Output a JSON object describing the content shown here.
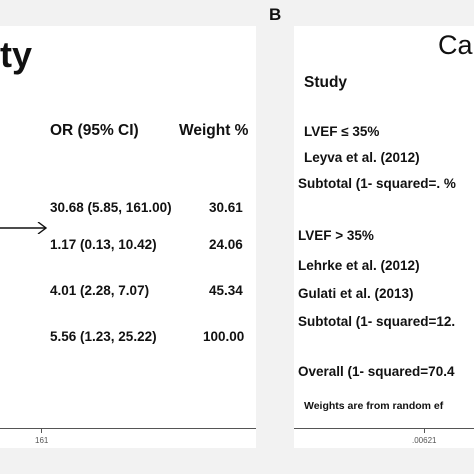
{
  "panel_a": {
    "title": "ty",
    "columns": {
      "or": "OR (95% CI)",
      "weight": "Weight %"
    },
    "tick": "161"
  },
  "panel_b": {
    "letter": "B",
    "title": "Ca",
    "study_header": "Study",
    "groups": {
      "g1": "LVEF ≤ 35%",
      "s1": "Leyva et al. (2012)",
      "sub1": "Subtotal (1- squared=. %",
      "g2": "LVEF > 35%",
      "s2": "Lehrke et al. (2012)",
      "s3": "Gulati et al. (2013)",
      "sub2": "Subtotal (1- squared=12.",
      "overall": "Overall (1- squared=70.4",
      "note": "Weights are from random ef"
    },
    "tick": ".00621"
  },
  "chart_data": {
    "type": "table",
    "columns": [
      "OR (95% CI)",
      "Weight %"
    ],
    "rows": [
      {
        "or": "30.68 (5.85, 161.00)",
        "weight": "30.61",
        "arrow": true
      },
      {
        "or": "1.17 (0.13, 10.42)",
        "weight": "24.06"
      },
      {
        "or": "4.01 (2.28, 7.07)",
        "weight": "45.34"
      },
      {
        "or": "5.56 (1.23, 25.22)",
        "weight": "100.00"
      }
    ]
  },
  "colors": {
    "background": "#f2f2f2",
    "panel": "#ffffff",
    "text": "#111111",
    "axis": "#555555"
  }
}
